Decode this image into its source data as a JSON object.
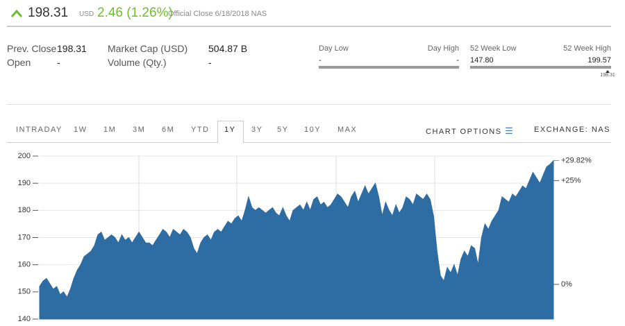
{
  "header": {
    "price": "198.31",
    "currency": "USD",
    "change": "2.46 (1.26%)",
    "note": "Official Close 6/18/2018 NAS"
  },
  "stats": {
    "prev_close_label": "Prev. Close",
    "prev_close": "198.31",
    "open_label": "Open",
    "open": "-",
    "market_cap_label": "Market Cap (USD)",
    "market_cap": "504.87 B",
    "volume_label": "Volume (Qty.)",
    "volume": "-",
    "day_low_label": "Day Low",
    "day_low": "-",
    "day_high_label": "Day High",
    "day_high": "-",
    "week52_low_label": "52 Week Low",
    "week52_low": 147.8,
    "week52_low_text": "147.80",
    "week52_high_label": "52 Week High",
    "week52_high": 199.57,
    "week52_high_text": "199.57",
    "week52_marker": 198.31,
    "week52_marker_text": "198.31"
  },
  "tabs": {
    "ranges": [
      "INTRADAY",
      "1W",
      "1M",
      "3M",
      "6M",
      "YTD",
      "1Y",
      "3Y",
      "5Y",
      "10Y",
      "MAX"
    ],
    "active": "1Y",
    "chart_options": "CHART OPTIONS",
    "exchange": "EXCHANGE: NAS"
  },
  "chart_data": {
    "type": "area",
    "color": "#2e6da4",
    "values": [
      152,
      154,
      155,
      153,
      151,
      152,
      149,
      150,
      148,
      151,
      155,
      158,
      160,
      163,
      164,
      165,
      167,
      171,
      172,
      169,
      170,
      171,
      170,
      168,
      171,
      169,
      170,
      168,
      170,
      172,
      170,
      168,
      168,
      167,
      169,
      171,
      173,
      172,
      170,
      173,
      172,
      171,
      173,
      172,
      170,
      166,
      164,
      168,
      170,
      171,
      169,
      172,
      173,
      172,
      174,
      176,
      175,
      177,
      178,
      176,
      180,
      185,
      181,
      180,
      181,
      180,
      179,
      180,
      181,
      179,
      178,
      181,
      178,
      176,
      180,
      181,
      182,
      180,
      183,
      180,
      184,
      185,
      182,
      183,
      181,
      182,
      184,
      186,
      185,
      183,
      181,
      185,
      187,
      183,
      186,
      189,
      186,
      188,
      190,
      185,
      178,
      183,
      180,
      178,
      182,
      179,
      181,
      185,
      184,
      182,
      186,
      185,
      184,
      186,
      184,
      178,
      165,
      156,
      154,
      159,
      157,
      160,
      156,
      162,
      165,
      163,
      167,
      166,
      160,
      170,
      175,
      173,
      176,
      178,
      180,
      185,
      184,
      183,
      186,
      185,
      187,
      189,
      188,
      191,
      194,
      192,
      190,
      193,
      196,
      197,
      198.31
    ],
    "ylim": [
      140,
      200
    ],
    "yticks": [
      140,
      150,
      160,
      170,
      180,
      190,
      200
    ],
    "y2lim": [
      -8.36,
      30.91
    ],
    "y2ticks": [
      {
        "value": 0,
        "label": "0%"
      },
      {
        "value": 25,
        "label": "+25%"
      }
    ],
    "y2_marker": {
      "value": 29.82,
      "label": "+29.82%",
      "color": "#6cbf2c"
    },
    "grid": true
  }
}
